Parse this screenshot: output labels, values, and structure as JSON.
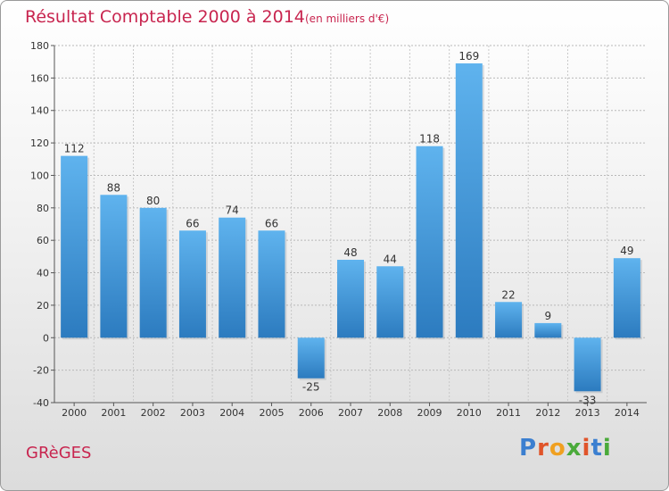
{
  "header": {
    "title": "Résultat Comptable 2000 à 2014",
    "subtitle": "(en milliers d'€)"
  },
  "footer": {
    "commune": "GRèGES",
    "logo_letters": [
      "P",
      "r",
      "o",
      "x",
      "i",
      "t",
      "i"
    ],
    "logo_colors": [
      "#3b7fd0",
      "#e0542a",
      "#f0a020",
      "#4aaa3a",
      "#e0542a",
      "#3b7fd0",
      "#4aaa3a"
    ]
  },
  "colors": {
    "accent": "#c8254f",
    "bar_light": "#5fb3ee",
    "bar_dark": "#2c7bbf"
  },
  "chart_data": {
    "type": "bar",
    "categories": [
      "2000",
      "2001",
      "2002",
      "2003",
      "2004",
      "2005",
      "2006",
      "2007",
      "2008",
      "2009",
      "2010",
      "2011",
      "2012",
      "2013",
      "2014"
    ],
    "values": [
      112,
      88,
      80,
      66,
      74,
      66,
      -25,
      48,
      44,
      118,
      169,
      22,
      9,
      -33,
      49
    ],
    "yticks": [
      -40,
      -20,
      0,
      20,
      40,
      60,
      80,
      100,
      120,
      140,
      160,
      180
    ],
    "ylim": [
      -40,
      180
    ],
    "grid": true,
    "title": "Résultat Comptable 2000 à 2014",
    "xlabel": "",
    "ylabel": ""
  }
}
